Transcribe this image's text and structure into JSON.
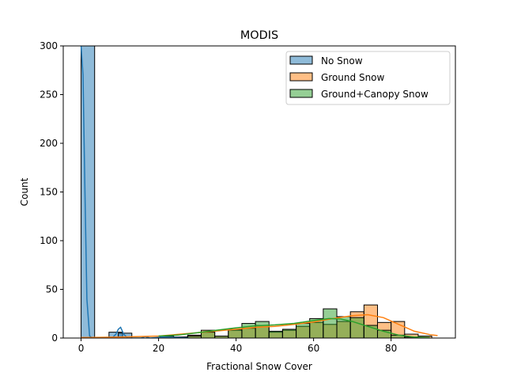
{
  "chart_data": {
    "type": "histogram",
    "title": "MODIS",
    "xlabel": "Fractional Snow Cover",
    "ylabel": "Count",
    "xlim": [
      -4.6,
      96.6
    ],
    "ylim": [
      0,
      300
    ],
    "xticks": [
      0,
      20,
      40,
      60,
      80
    ],
    "yticks": [
      0,
      50,
      100,
      150,
      200,
      250,
      300
    ],
    "grid": false,
    "legend_position": "top-right",
    "bin_width": 3.5,
    "clipped_note": "No Snow first bin exceeds the y-axis limit",
    "series": [
      {
        "name": "No Snow",
        "color": "#1f77b4",
        "bins": [
          [
            0.0,
            300
          ],
          [
            7.2,
            6
          ],
          [
            9.6,
            5
          ]
        ],
        "kde": [
          [
            0,
            300
          ],
          [
            0.5,
            270
          ],
          [
            1.0,
            150
          ],
          [
            1.5,
            40
          ],
          [
            2.2,
            2
          ],
          [
            3,
            0
          ],
          [
            8,
            0
          ],
          [
            9,
            4
          ],
          [
            9.6,
            9
          ],
          [
            10.2,
            11
          ],
          [
            11.0,
            4
          ],
          [
            12,
            0
          ],
          [
            15.5,
            0
          ],
          [
            16.5,
            1.5
          ],
          [
            17.8,
            0
          ],
          [
            21,
            1
          ],
          [
            25,
            0.5
          ],
          [
            28,
            0
          ]
        ]
      },
      {
        "name": "Ground Snow",
        "color": "#ff7f0e",
        "bins": [
          [
            20.4,
            1
          ],
          [
            24.0,
            1
          ],
          [
            27.5,
            3
          ],
          [
            31.0,
            8
          ],
          [
            34.5,
            2
          ],
          [
            38.0,
            8
          ],
          [
            41.5,
            10
          ],
          [
            45.0,
            13
          ],
          [
            48.5,
            6
          ],
          [
            52.0,
            8
          ],
          [
            55.5,
            12
          ],
          [
            59.0,
            16
          ],
          [
            62.5,
            14
          ],
          [
            66.0,
            17
          ],
          [
            69.5,
            27
          ],
          [
            73.0,
            34
          ],
          [
            76.5,
            16
          ],
          [
            80.0,
            17
          ],
          [
            83.5,
            4
          ],
          [
            87.0,
            2
          ]
        ],
        "kde": [
          [
            0,
            0.5
          ],
          [
            10,
            1
          ],
          [
            20,
            2
          ],
          [
            30,
            5.5
          ],
          [
            40,
            9
          ],
          [
            45,
            11
          ],
          [
            50,
            12
          ],
          [
            55,
            14
          ],
          [
            60,
            16.5
          ],
          [
            65,
            20
          ],
          [
            70,
            23
          ],
          [
            74,
            24
          ],
          [
            78,
            21
          ],
          [
            82,
            14
          ],
          [
            86,
            7
          ],
          [
            90,
            3.5
          ],
          [
            92,
            2.5
          ]
        ]
      },
      {
        "name": "Ground+Canopy Snow",
        "color": "#2ca02c",
        "bins": [
          [
            20.4,
            2
          ],
          [
            24.0,
            1
          ],
          [
            27.5,
            2
          ],
          [
            31.0,
            6
          ],
          [
            34.5,
            2
          ],
          [
            38.0,
            9
          ],
          [
            41.5,
            15
          ],
          [
            45.0,
            17
          ],
          [
            48.5,
            7
          ],
          [
            52.0,
            9
          ],
          [
            55.5,
            15
          ],
          [
            59.0,
            20
          ],
          [
            62.5,
            30
          ],
          [
            66.0,
            22
          ],
          [
            69.5,
            21
          ],
          [
            73.0,
            13
          ],
          [
            76.5,
            8
          ],
          [
            80.0,
            3
          ],
          [
            83.5,
            1
          ]
        ],
        "kde": [
          [
            20,
            2
          ],
          [
            25,
            3
          ],
          [
            30,
            5.5
          ],
          [
            35,
            8
          ],
          [
            40,
            10.5
          ],
          [
            45,
            12.5
          ],
          [
            50,
            13.5
          ],
          [
            55,
            15
          ],
          [
            60,
            18
          ],
          [
            64,
            20
          ],
          [
            67,
            19.5
          ],
          [
            70,
            17
          ],
          [
            74,
            12
          ],
          [
            78,
            7
          ],
          [
            82,
            3
          ],
          [
            86,
            1
          ],
          [
            90,
            0.5
          ]
        ]
      }
    ]
  }
}
